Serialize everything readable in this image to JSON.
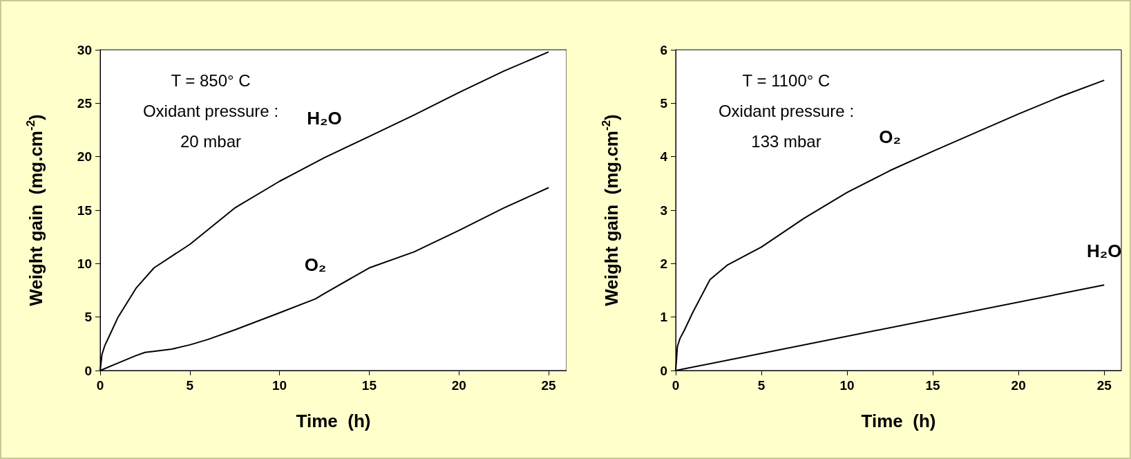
{
  "chart_data": [
    {
      "type": "line",
      "xlabel": "Time  (h)",
      "ylabel": "Weight gain  (mg.cm$^{-2}$)",
      "xlim": [
        0,
        26
      ],
      "xticks": [
        0,
        5,
        10,
        15,
        20,
        25
      ],
      "ylim": [
        0,
        30
      ],
      "yticks": [
        0,
        5,
        10,
        15,
        20,
        25,
        30
      ],
      "grid": false,
      "legend": false,
      "annotations": [
        "T = 850° C",
        "Oxidant pressure :",
        "20 mbar"
      ],
      "series": [
        {
          "name": "H₂O",
          "color": "#000000",
          "x": [
            0,
            0.1,
            0.25,
            0.5,
            1,
            2,
            3,
            5,
            7.5,
            10,
            12.5,
            15,
            17.5,
            20,
            22.5,
            25
          ],
          "values": [
            0,
            1.5,
            2.3,
            3.2,
            5.0,
            7.7,
            9.6,
            11.8,
            15.2,
            17.7,
            19.9,
            21.9,
            23.9,
            26.0,
            28.0,
            29.8
          ]
        },
        {
          "name": "O₂",
          "color": "#000000",
          "x": [
            0,
            1,
            2,
            2.5,
            3,
            4,
            5,
            6,
            7.5,
            10,
            12,
            12.5,
            15,
            17.5,
            20,
            22.5,
            25
          ],
          "values": [
            0,
            0.7,
            1.4,
            1.7,
            1.8,
            2.0,
            2.4,
            2.9,
            3.8,
            5.4,
            6.7,
            7.2,
            9.6,
            11.1,
            13.1,
            15.2,
            17.1
          ]
        }
      ]
    },
    {
      "type": "line",
      "xlabel": "Time  (h)",
      "ylabel": "Weight gain  (mg.cm$^{-2}$)",
      "xlim": [
        0,
        26
      ],
      "xticks": [
        0,
        5,
        10,
        15,
        20,
        25
      ],
      "ylim": [
        0,
        6
      ],
      "yticks": [
        0,
        1,
        2,
        3,
        4,
        5,
        6
      ],
      "grid": false,
      "legend": false,
      "annotations": [
        "T = 1100° C",
        "Oxidant pressure :",
        "133 mbar"
      ],
      "series": [
        {
          "name": "O₂",
          "color": "#000000",
          "x": [
            0,
            0.1,
            0.25,
            0.5,
            1,
            2,
            3,
            5,
            7.5,
            10,
            12.5,
            15,
            17.5,
            20,
            22.5,
            25
          ],
          "values": [
            0,
            0.45,
            0.6,
            0.75,
            1.09,
            1.7,
            1.97,
            2.31,
            2.85,
            3.33,
            3.74,
            4.1,
            4.45,
            4.8,
            5.13,
            5.43
          ]
        },
        {
          "name": "H₂O",
          "color": "#000000",
          "x": [
            0,
            25
          ],
          "values": [
            0,
            1.6
          ]
        }
      ]
    }
  ]
}
